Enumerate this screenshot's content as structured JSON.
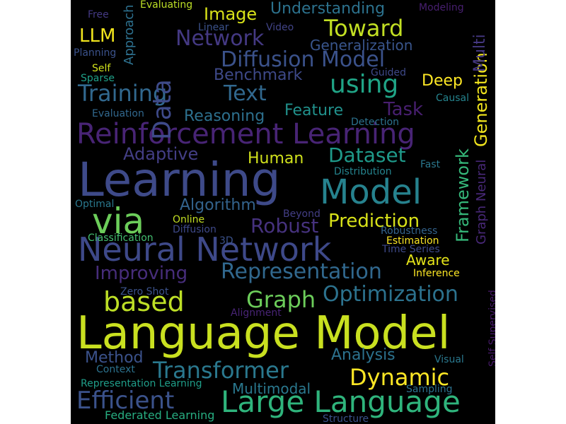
{
  "word_cloud": {
    "background": "#000000",
    "words": [
      {
        "text": "Language Model",
        "color": "#c9e020"
      },
      {
        "text": "Learning",
        "color": "#3e4a89"
      },
      {
        "text": "Reinforcement Learning",
        "color": "#482475"
      },
      {
        "text": "Neural Network",
        "color": "#3e4989"
      },
      {
        "text": "Large Language",
        "color": "#2fb47c"
      },
      {
        "text": "Model",
        "color": "#26828e"
      },
      {
        "text": "via",
        "color": "#6ccd5a"
      },
      {
        "text": "Diffusion Model",
        "color": "#3b528b"
      },
      {
        "text": "Representation",
        "color": "#31688e"
      },
      {
        "text": "Efficient",
        "color": "#3b528b"
      },
      {
        "text": "based",
        "color": "#bddf26"
      },
      {
        "text": "Transformer",
        "color": "#2a788e"
      },
      {
        "text": "using",
        "color": "#20a486"
      },
      {
        "text": "Training",
        "color": "#31688e"
      },
      {
        "text": "Text",
        "color": "#31688e"
      },
      {
        "text": "Data",
        "color": "#3e4a89"
      },
      {
        "text": "Dynamic",
        "color": "#fde725"
      },
      {
        "text": "Optimization",
        "color": "#2c728e"
      },
      {
        "text": "Graph",
        "color": "#6ccd5a"
      },
      {
        "text": "Toward",
        "color": "#c2df23"
      },
      {
        "text": "Network",
        "color": "#443983"
      },
      {
        "text": "Dataset",
        "color": "#1f9a8a"
      },
      {
        "text": "Prediction",
        "color": "#d8e219"
      },
      {
        "text": "Robust",
        "color": "#46327e"
      },
      {
        "text": "Improving",
        "color": "#472d7b"
      },
      {
        "text": "Task",
        "color": "#481f70"
      },
      {
        "text": "Adaptive",
        "color": "#433e85"
      },
      {
        "text": "Framework",
        "color": "#35b779"
      },
      {
        "text": "Benchmark",
        "color": "#3e4989"
      },
      {
        "text": "Reasoning",
        "color": "#2d708e"
      },
      {
        "text": "Image",
        "color": "#d8e219"
      },
      {
        "text": "Understanding",
        "color": "#2c728e"
      },
      {
        "text": "Algorithm",
        "color": "#33638d"
      },
      {
        "text": "LLM",
        "color": "#f1e51d"
      },
      {
        "text": "Generation",
        "color": "#f1e51d"
      },
      {
        "text": "Feature",
        "color": "#21918c"
      },
      {
        "text": "Analysis",
        "color": "#2c728e"
      },
      {
        "text": "Method",
        "color": "#3b528b"
      },
      {
        "text": "Multimodal",
        "color": "#2a788e"
      },
      {
        "text": "Deep",
        "color": "#fde725"
      },
      {
        "text": "Aware",
        "color": "#e5e419"
      },
      {
        "text": "Human",
        "color": "#d0e11c"
      },
      {
        "text": "Multi",
        "color": "#453882"
      },
      {
        "text": "Graph Neural",
        "color": "#482878"
      },
      {
        "text": "Generalization",
        "color": "#39558c"
      },
      {
        "text": "Approach",
        "color": "#2d708e"
      },
      {
        "text": "Federated Learning",
        "color": "#27ad81"
      },
      {
        "text": "Zero Shot",
        "color": "#3b528b"
      },
      {
        "text": "Representation Learning",
        "color": "#1f9e89"
      },
      {
        "text": "Evaluating",
        "color": "#bddf26"
      },
      {
        "text": "Modeling",
        "color": "#481f70"
      },
      {
        "text": "Free",
        "color": "#443983"
      },
      {
        "text": "Linear",
        "color": "#3b528b"
      },
      {
        "text": "Video",
        "color": "#414487"
      },
      {
        "text": "Planning",
        "color": "#3b528b"
      },
      {
        "text": "Self",
        "color": "#d0e11c"
      },
      {
        "text": "Sparse",
        "color": "#1fa088"
      },
      {
        "text": "Guided",
        "color": "#3e4989"
      },
      {
        "text": "Causal",
        "color": "#25848e"
      },
      {
        "text": "Evaluation",
        "color": "#31688e"
      },
      {
        "text": "Detection",
        "color": "#2c728e"
      },
      {
        "text": "Distribution",
        "color": "#25848e"
      },
      {
        "text": "Fast",
        "color": "#2a788e"
      },
      {
        "text": "Optimal",
        "color": "#2a788e"
      },
      {
        "text": "Online",
        "color": "#c2df23"
      },
      {
        "text": "Diffusion",
        "color": "#3e4989"
      },
      {
        "text": "Beyond",
        "color": "#433e85"
      },
      {
        "text": "Classification",
        "color": "#44bf70"
      },
      {
        "text": "Robustness",
        "color": "#33638d"
      },
      {
        "text": "Estimation",
        "color": "#fde725"
      },
      {
        "text": "3D",
        "color": "#3b528b"
      },
      {
        "text": "Time Series",
        "color": "#3e4989"
      },
      {
        "text": "Inference",
        "color": "#fde725"
      },
      {
        "text": "Self Supervised",
        "color": "#481a6c"
      },
      {
        "text": "Alignment",
        "color": "#482475"
      },
      {
        "text": "Visual",
        "color": "#2a788e"
      },
      {
        "text": "Context",
        "color": "#2c728e"
      },
      {
        "text": "Sampling",
        "color": "#2c728e"
      },
      {
        "text": "Structure",
        "color": "#3b528b"
      }
    ]
  }
}
